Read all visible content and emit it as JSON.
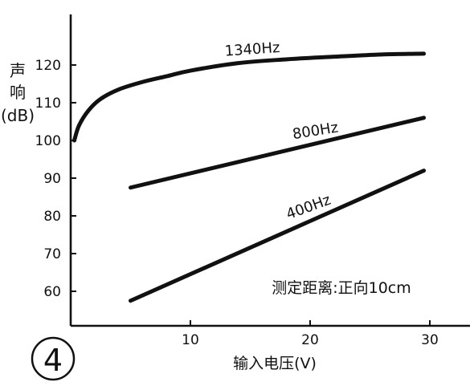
{
  "figure_number": "4",
  "chart_data": {
    "type": "line",
    "xlabel": "输入电压(V)",
    "ylabel_lines": [
      "声",
      "响",
      "(dB)"
    ],
    "xlim": [
      0,
      30
    ],
    "ylim": [
      52,
      127
    ],
    "x_ticks": [
      10,
      20,
      30
    ],
    "y_ticks": [
      60,
      70,
      80,
      90,
      100,
      110,
      120
    ],
    "grid": false,
    "annotation": "测定距离:正向10cm",
    "series": [
      {
        "name": "1340Hz",
        "x": [
          0.3,
          0.7,
          1.5,
          2.5,
          4,
          6,
          8,
          10,
          14,
          18,
          22,
          26,
          29.5
        ],
        "y": [
          100,
          104,
          108,
          111,
          113.5,
          115.5,
          117,
          118.5,
          120.5,
          121.5,
          122.2,
          122.8,
          123
        ]
      },
      {
        "name": "800Hz",
        "x": [
          5,
          29.5
        ],
        "y": [
          87.5,
          106
        ]
      },
      {
        "name": "400Hz",
        "x": [
          5,
          29.5
        ],
        "y": [
          57.5,
          92
        ]
      }
    ]
  }
}
